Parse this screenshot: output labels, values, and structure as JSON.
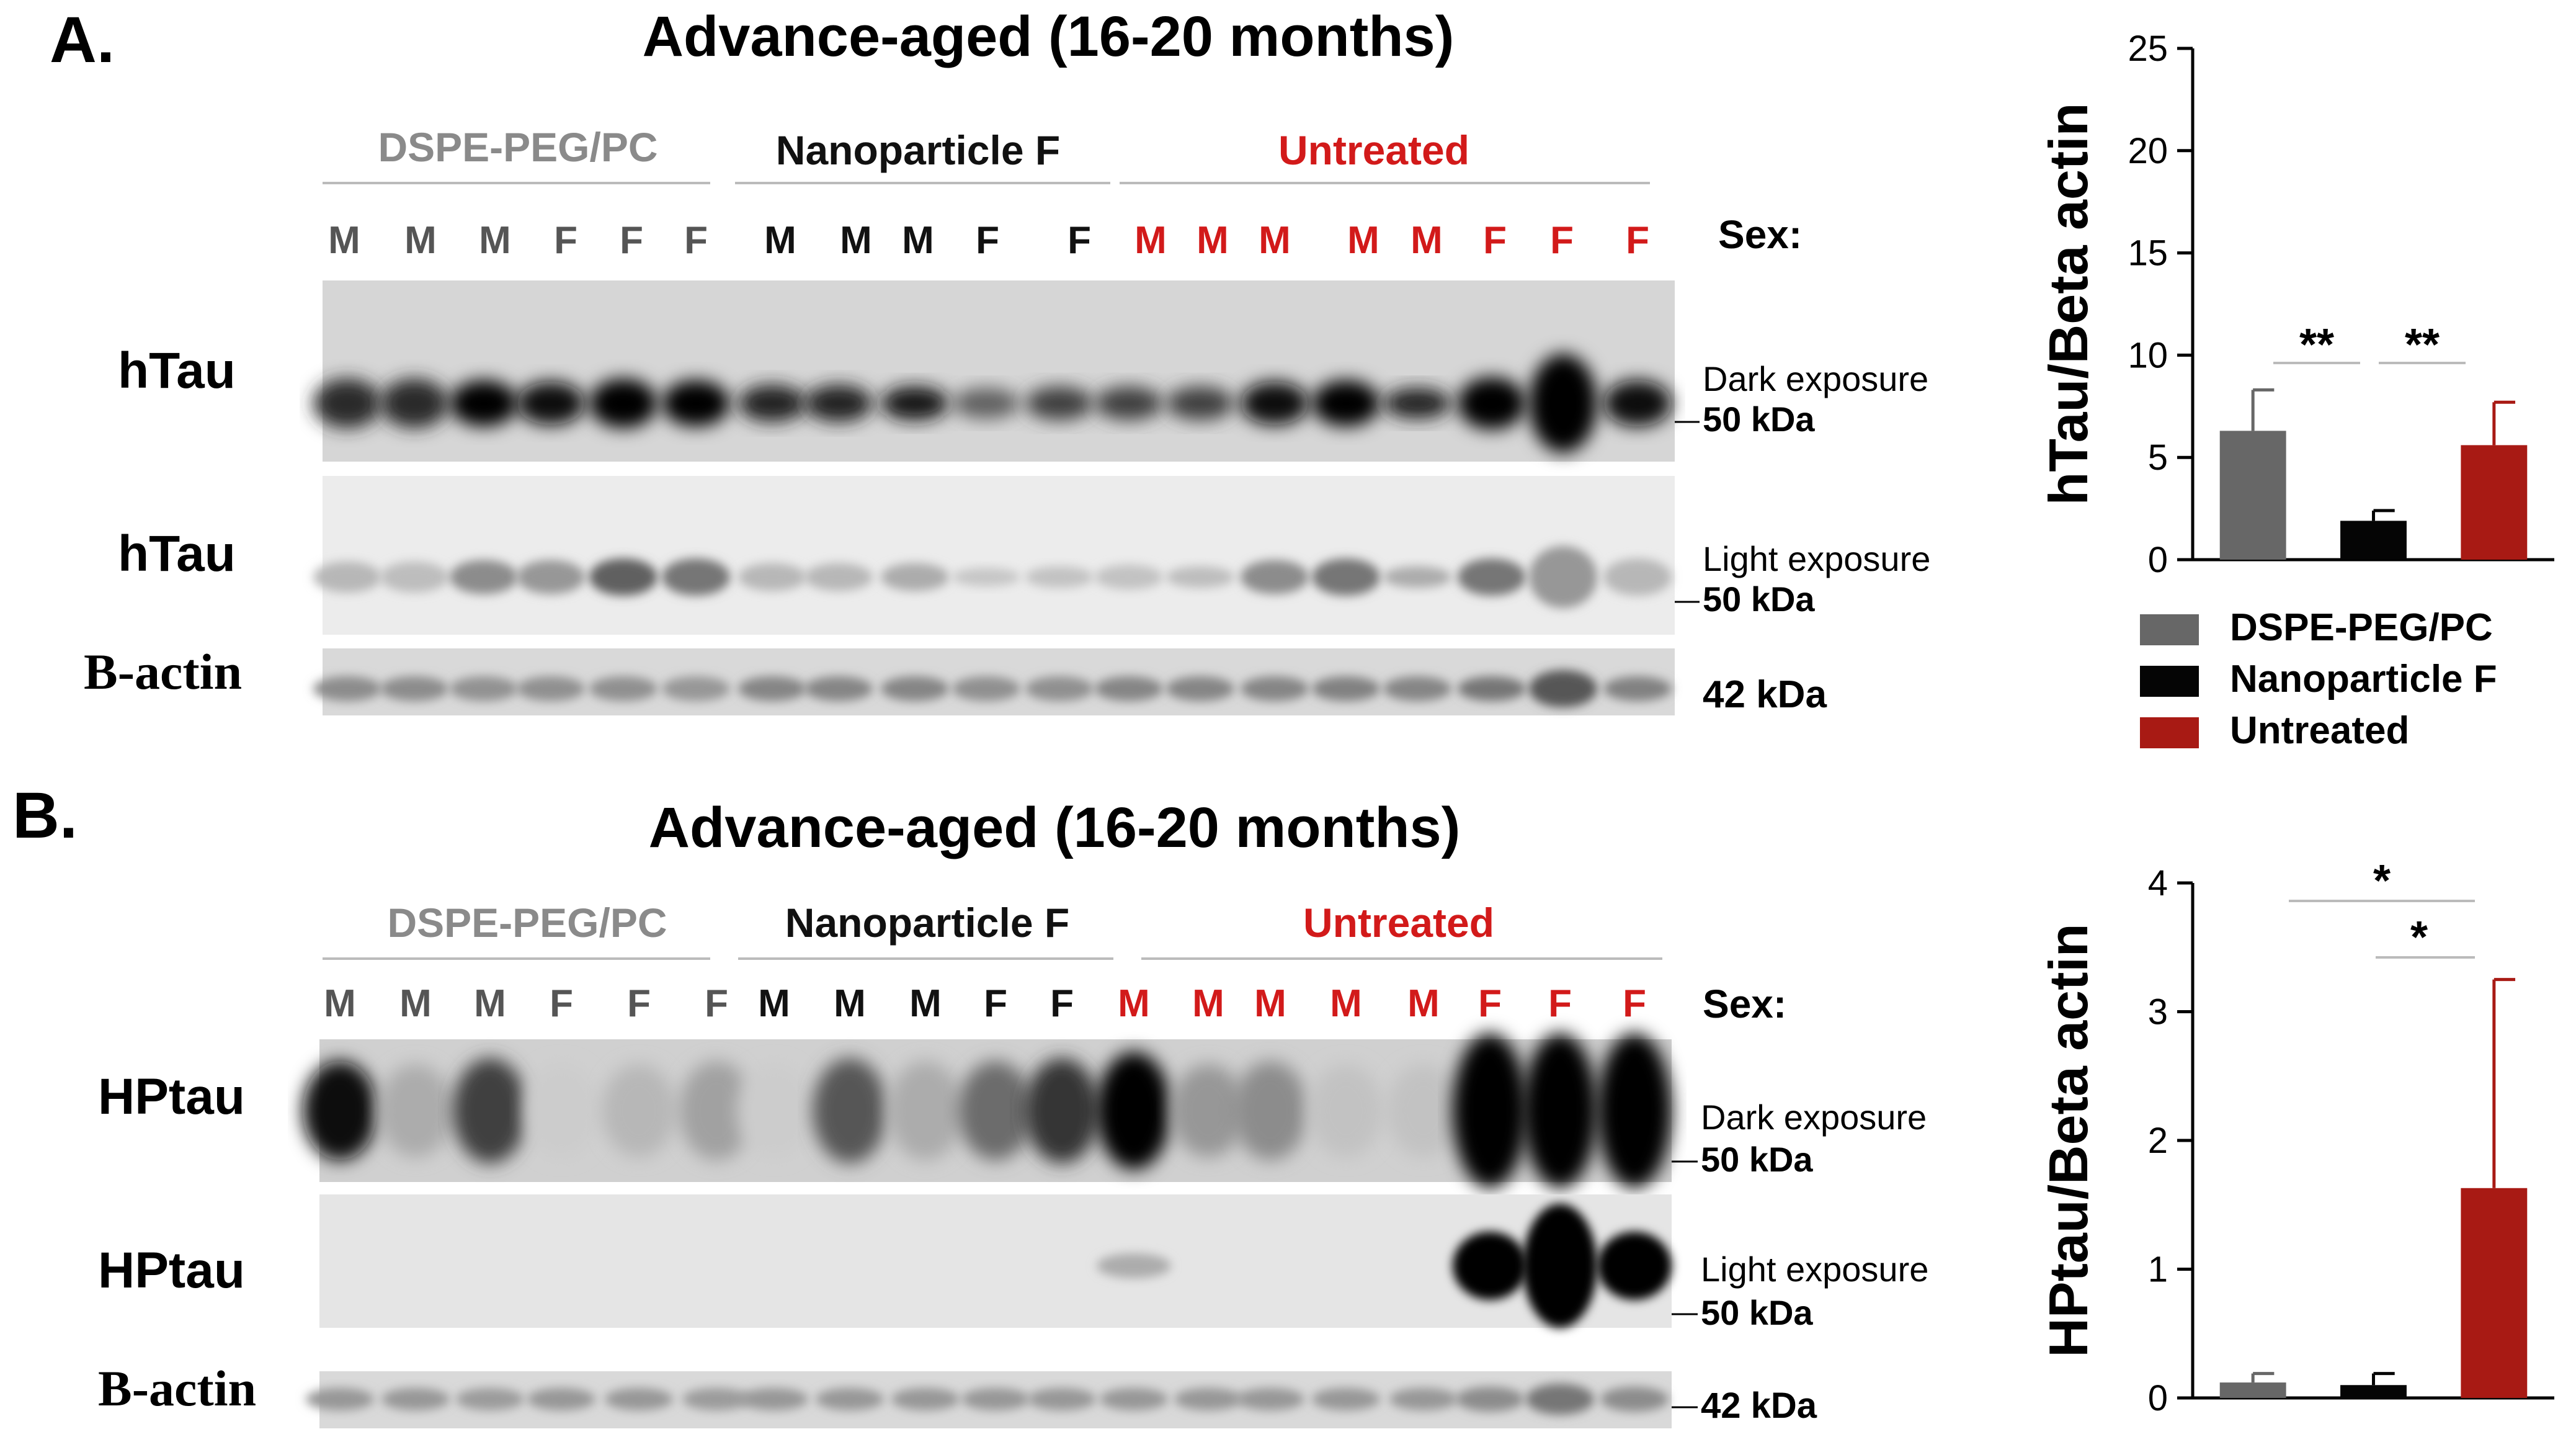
{
  "panel_a": {
    "label": "A.",
    "title": "Advance-aged (16-20 months)",
    "groups": [
      {
        "name": "DSPE-PEG/PC",
        "color": "#8a8a8a"
      },
      {
        "name": "Nanoparticle F",
        "color": "#111111"
      },
      {
        "name": "Untreated",
        "color": "#d21a1a"
      }
    ],
    "sex_label": "Sex:",
    "sexes": [
      "M",
      "M",
      "M",
      "F",
      "F",
      "F",
      "M",
      "M",
      "M",
      "F",
      "F",
      "M",
      "M",
      "M",
      "M",
      "M",
      "F",
      "F",
      "F"
    ],
    "rows": [
      {
        "label": "hTau",
        "exposure": "Dark exposure",
        "kda": "50 kDa"
      },
      {
        "label": "hTau",
        "exposure": "Light exposure",
        "kda": "50 kDa"
      },
      {
        "label": "B-actin",
        "exposure": "",
        "kda": "42 kDa"
      }
    ]
  },
  "panel_b": {
    "label": "B.",
    "title": "Advance-aged (16-20 months)",
    "groups": [
      {
        "name": "DSPE-PEG/PC",
        "color": "#8a8a8a"
      },
      {
        "name": "Nanoparticle F",
        "color": "#111111"
      },
      {
        "name": "Untreated",
        "color": "#d21a1a"
      }
    ],
    "sex_label": "Sex:",
    "sexes": [
      "M",
      "M",
      "M",
      "F",
      "F",
      "F",
      "M",
      "M",
      "M",
      "F",
      "F",
      "M",
      "M",
      "M",
      "M",
      "M",
      "F",
      "F",
      "F"
    ],
    "rows": [
      {
        "label": "HPtau",
        "exposure": "Dark exposure",
        "kda": "50 kDa"
      },
      {
        "label": "HPtau",
        "exposure": "Light exposure",
        "kda": "50 kDa"
      },
      {
        "label": "B-actin",
        "exposure": "",
        "kda": "42 kDa"
      }
    ]
  },
  "chart_data": [
    {
      "type": "bar",
      "ylabel": "hTau/Beta actin",
      "ylim": [
        0,
        25
      ],
      "yticks": [
        "0",
        "5",
        "10",
        "15",
        "20",
        "25"
      ],
      "categories": [
        "DSPE-PEG/PC",
        "Nanoparticle F",
        "Untreated"
      ],
      "values": [
        6.3,
        1.9,
        5.6
      ],
      "errors": [
        2.0,
        0.5,
        2.1
      ],
      "colors": [
        "#676767",
        "#050505",
        "#a81a14"
      ],
      "annotations": [
        {
          "text": "**",
          "from": 0,
          "to": 1
        },
        {
          "text": "**",
          "from": 1,
          "to": 2
        }
      ],
      "legend": [
        "DSPE-PEG/PC",
        "Nanoparticle F",
        "Untreated"
      ]
    },
    {
      "type": "bar",
      "ylabel": "HPtau/Beta actin",
      "ylim": [
        0,
        4
      ],
      "yticks": [
        "0",
        "1",
        "2",
        "3",
        "4"
      ],
      "categories": [
        "DSPE-PEG/PC",
        "Nanoparticle F",
        "Untreated"
      ],
      "values": [
        0.12,
        0.1,
        1.63
      ],
      "errors": [
        0.07,
        0.09,
        1.62
      ],
      "colors": [
        "#676767",
        "#050505",
        "#a81a14"
      ],
      "annotations": [
        {
          "text": "*",
          "from": 0,
          "to": 2
        },
        {
          "text": "*",
          "from": 1,
          "to": 2
        }
      ]
    }
  ]
}
